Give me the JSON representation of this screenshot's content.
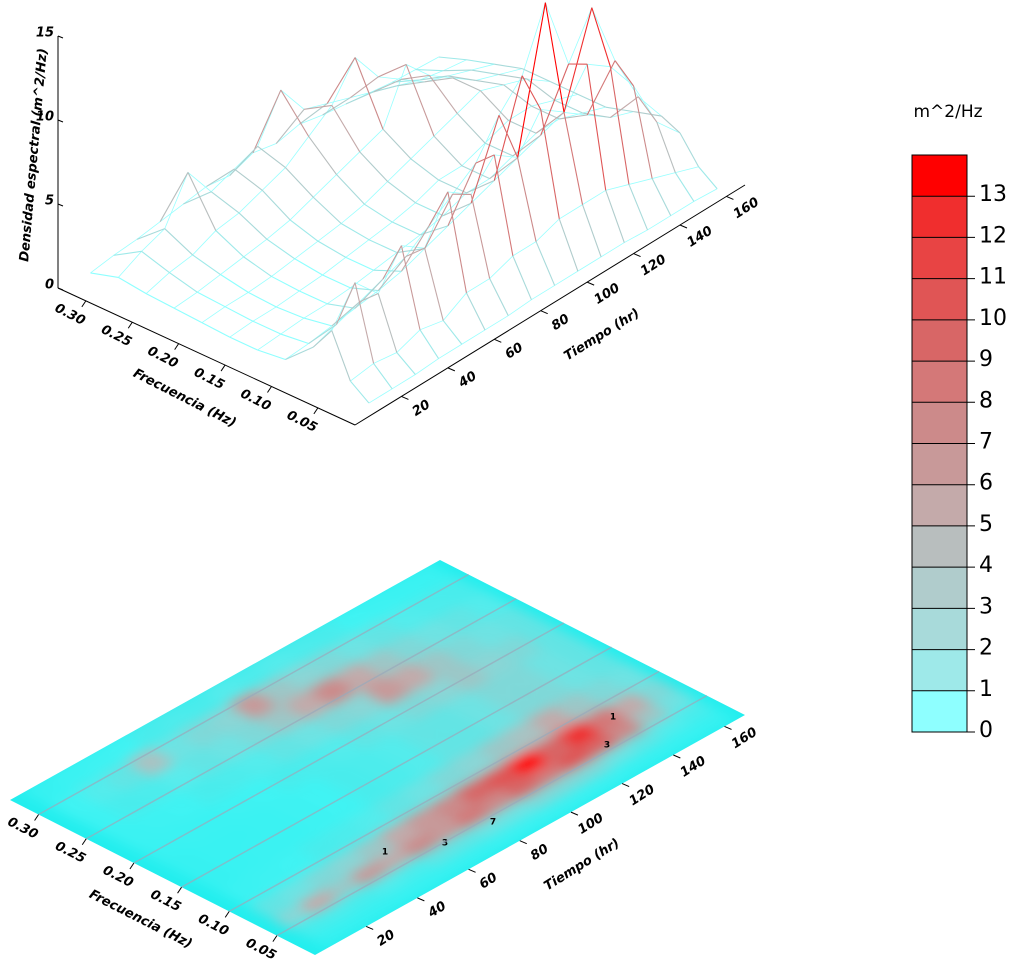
{
  "chart_data": [
    {
      "type": "waterfall3d",
      "ylabel": "Densidad espectral (m^2/Hz)",
      "xlabel": "Frecuencia (Hz)",
      "zlabel": "Tiempo (hr)",
      "frequencies": [
        0.32,
        0.29,
        0.26,
        0.23,
        0.2,
        0.17,
        0.14,
        0.11,
        0.08,
        0.06,
        0.04,
        0.02
      ],
      "times": [
        10,
        20,
        30,
        40,
        50,
        60,
        70,
        80,
        90,
        100,
        110,
        120,
        130,
        140,
        150,
        160
      ],
      "values": [
        [
          0.3,
          0.8,
          0.6,
          0.5,
          0.4,
          0.3,
          0.3,
          0.5,
          2.0,
          3.5,
          1.0,
          0.2
        ],
        [
          0.5,
          1.5,
          1.0,
          0.6,
          0.5,
          0.4,
          0.4,
          0.6,
          2.5,
          5.5,
          1.2,
          0.2
        ],
        [
          0.6,
          2.0,
          1.2,
          0.8,
          0.5,
          0.4,
          0.5,
          0.8,
          3.0,
          4.0,
          1.0,
          0.2
        ],
        [
          0.8,
          4.5,
          1.8,
          1.0,
          0.6,
          0.5,
          0.5,
          1.0,
          3.5,
          6.0,
          1.5,
          0.3
        ],
        [
          1.0,
          2.5,
          2.0,
          1.2,
          0.8,
          0.6,
          0.6,
          1.2,
          4.0,
          5.0,
          1.2,
          0.3
        ],
        [
          1.2,
          3.0,
          2.5,
          1.5,
          1.0,
          0.8,
          0.8,
          1.5,
          5.0,
          7.5,
          2.0,
          0.3
        ],
        [
          1.0,
          3.5,
          3.0,
          2.0,
          1.2,
          1.0,
          1.0,
          2.0,
          6.0,
          6.5,
          2.0,
          0.3
        ],
        [
          1.5,
          6.0,
          4.0,
          2.5,
          1.5,
          1.2,
          1.2,
          2.5,
          7.0,
          8.0,
          2.5,
          0.4
        ],
        [
          1.2,
          4.0,
          5.0,
          3.0,
          2.0,
          1.5,
          1.5,
          3.0,
          9.0,
          7.0,
          2.5,
          0.4
        ],
        [
          1.5,
          3.5,
          7.0,
          3.5,
          2.5,
          2.0,
          2.0,
          3.5,
          10.5,
          9.0,
          3.0,
          0.4
        ],
        [
          1.2,
          3.0,
          5.0,
          6.5,
          3.0,
          2.0,
          2.0,
          4.0,
          14.0,
          8.0,
          3.0,
          0.4
        ],
        [
          1.0,
          2.5,
          4.0,
          5.0,
          3.5,
          2.5,
          2.5,
          4.5,
          9.5,
          10.0,
          3.0,
          0.4
        ],
        [
          0.8,
          2.0,
          3.0,
          4.0,
          4.0,
          3.0,
          3.0,
          5.0,
          12.0,
          9.0,
          2.5,
          0.3
        ],
        [
          0.6,
          1.5,
          2.5,
          3.0,
          3.5,
          3.0,
          3.0,
          4.0,
          8.0,
          7.0,
          2.0,
          0.3
        ],
        [
          0.5,
          1.2,
          2.0,
          2.5,
          3.0,
          2.5,
          2.5,
          3.0,
          5.0,
          4.0,
          1.5,
          0.3
        ],
        [
          0.4,
          1.0,
          1.5,
          2.0,
          2.0,
          2.0,
          2.0,
          2.5,
          3.0,
          2.5,
          1.0,
          0.2
        ]
      ],
      "xlim": [
        0.33,
        0.01
      ],
      "xticks": [
        {
          "value": 0.3,
          "label": "0.30"
        },
        0.25,
        {
          "value": 0.2,
          "label": "0.20"
        },
        0.15,
        {
          "value": 0.1,
          "label": "0.10"
        },
        0.05
      ],
      "zlim": [
        0,
        168
      ],
      "zticks": [
        20,
        40,
        60,
        80,
        100,
        120,
        140,
        160
      ],
      "ylim": [
        0,
        15
      ],
      "yticks": [
        0,
        5,
        10,
        15
      ]
    },
    {
      "type": "contour3d",
      "xlabel": "Frecuencia (Hz)",
      "zlabel": "Tiempo (hr)",
      "xlim": [
        0.33,
        0.01
      ],
      "xticks": [
        {
          "value": 0.3,
          "label": "0.30"
        },
        0.25,
        {
          "value": 0.2,
          "label": "0.20"
        },
        0.15,
        {
          "value": 0.1,
          "label": "0.10"
        },
        0.05
      ],
      "zlim": [
        0,
        168
      ],
      "zticks": [
        20,
        40,
        60,
        80,
        100,
        120,
        140,
        160
      ],
      "grid": true,
      "background": "#22eeee",
      "annotations": [
        "1",
        "3",
        "7",
        "3",
        "1"
      ]
    },
    {
      "type": "colorbar",
      "title": "m^2/Hz",
      "lim": [
        0,
        14
      ],
      "ticks": [
        0,
        1,
        2,
        3,
        4,
        5,
        6,
        7,
        8,
        9,
        10,
        11,
        12,
        13
      ],
      "colors": [
        "#8effff",
        "#9ee9e9",
        "#a8dada",
        "#b0cccc",
        "#b8bebe",
        "#c4aaaa",
        "#c89999",
        "#cc8a8a",
        "#d47878",
        "#d86666",
        "#e05555",
        "#e84444",
        "#f02e2e",
        "#ff0000"
      ]
    }
  ]
}
